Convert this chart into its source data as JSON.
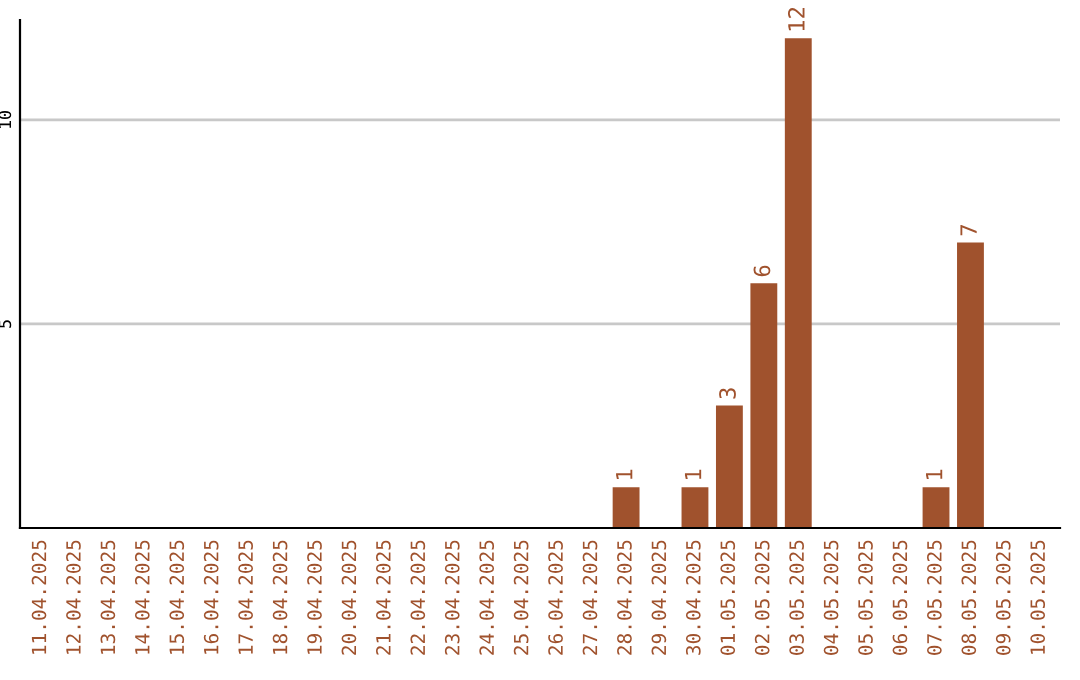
{
  "chart_data": {
    "type": "bar",
    "categories": [
      "11.04.2025",
      "12.04.2025",
      "13.04.2025",
      "14.04.2025",
      "15.04.2025",
      "16.04.2025",
      "17.04.2025",
      "18.04.2025",
      "19.04.2025",
      "20.04.2025",
      "21.04.2025",
      "22.04.2025",
      "23.04.2025",
      "24.04.2025",
      "25.04.2025",
      "26.04.2025",
      "27.04.2025",
      "28.04.2025",
      "29.04.2025",
      "30.04.2025",
      "01.05.2025",
      "02.05.2025",
      "03.05.2025",
      "04.05.2025",
      "05.05.2025",
      "06.05.2025",
      "07.05.2025",
      "08.05.2025",
      "09.05.2025",
      "10.05.2025"
    ],
    "values": [
      0,
      0,
      0,
      0,
      0,
      0,
      0,
      0,
      0,
      0,
      0,
      0,
      0,
      0,
      0,
      0,
      0,
      1,
      0,
      1,
      3,
      6,
      12,
      0,
      0,
      0,
      1,
      7,
      0,
      0
    ],
    "value_labels": [
      null,
      null,
      null,
      null,
      null,
      null,
      null,
      null,
      null,
      null,
      null,
      null,
      null,
      null,
      null,
      null,
      null,
      "1",
      null,
      "1",
      "3",
      "6",
      "12",
      null,
      null,
      null,
      "1",
      "7",
      null,
      null
    ],
    "color": "#a0522d",
    "ylim": [
      0,
      12.45
    ],
    "yticks": [
      5,
      10
    ],
    "grid": "y",
    "legend": false
  }
}
